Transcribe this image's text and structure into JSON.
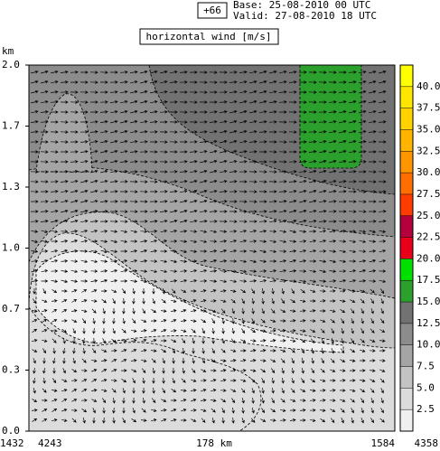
{
  "chart_data": {
    "type": "contour",
    "forecast": "+66",
    "base": "Base: 25-08-2010  00 UTC",
    "valid": "Valid: 27-08-2010  18 UTC",
    "title": "horizontal wind [m/s]",
    "y_label": "km",
    "ylim": [
      0,
      2
    ],
    "yticks": [
      {
        "value": 0,
        "label": "0.0"
      },
      {
        "value": 0.3333,
        "label": "0.3"
      },
      {
        "value": 0.6667,
        "label": "0.7"
      },
      {
        "value": 1,
        "label": "1.0"
      },
      {
        "value": 1.3333,
        "label": "1.3"
      },
      {
        "value": 1.6667,
        "label": "1.7"
      },
      {
        "value": 2,
        "label": "2.0"
      }
    ],
    "x_labels": [
      "1432",
      "4243",
      "178 km",
      "1584",
      "4358"
    ],
    "levels": [
      0,
      2.5,
      5,
      7.5,
      10,
      12.5,
      15,
      17.5,
      20,
      22.5,
      25,
      27.5,
      30,
      32.5,
      35,
      37.5,
      40,
      42.5
    ],
    "colors": [
      "#f0f0f0",
      "#dcdcdc",
      "#c3c3c3",
      "#a5a5a5",
      "#8c8c8c",
      "#727272",
      "#2ca02c",
      "#00e000",
      "#e8001a",
      "#b4003c",
      "#ff3c00",
      "#ff6e00",
      "#ff9600",
      "#ffb400",
      "#ffd200",
      "#ffe600",
      "#ffff00"
    ],
    "colorbar_ticks": [
      2.5,
      {
        "value": 5,
        "label": "5.0"
      },
      7.5,
      {
        "value": 10,
        "label": "10.0"
      },
      12.5,
      {
        "value": 15,
        "label": "15.0"
      },
      17.5,
      {
        "value": 20,
        "label": "20.0"
      },
      22.5,
      {
        "value": 25,
        "label": "25.0"
      },
      27.5,
      {
        "value": 30,
        "label": "30.0"
      },
      32.5,
      {
        "value": 35,
        "label": "35.0"
      },
      37.5,
      {
        "value": 40,
        "label": "40.0"
      }
    ]
  }
}
